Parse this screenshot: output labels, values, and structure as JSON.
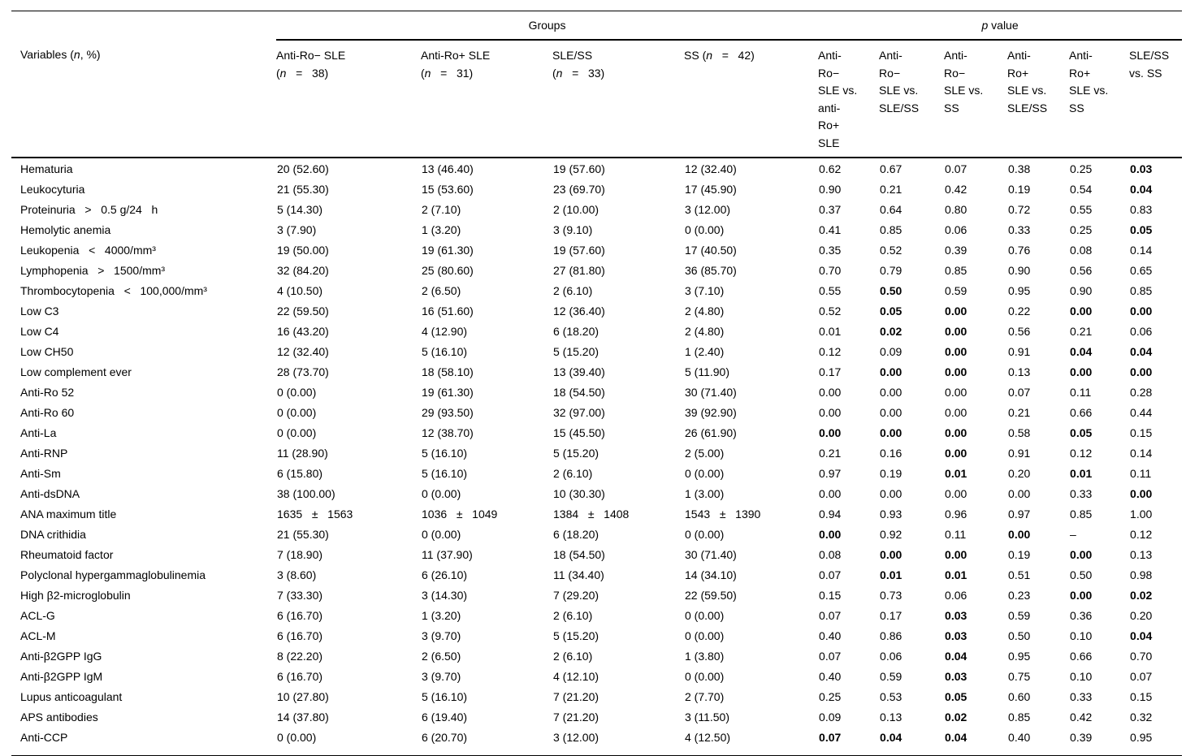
{
  "table": {
    "header": {
      "variables_label_parts": [
        {
          "t": "Variables (",
          "i": 0
        },
        {
          "t": "n",
          "i": 1
        },
        {
          "t": ", %)",
          "i": 0
        }
      ],
      "groups_label": "Groups",
      "pvalue_label_parts": [
        {
          "t": "p",
          "i": 1
        },
        {
          "t": " value",
          "i": 0
        }
      ],
      "group_columns": [
        {
          "l1": [
            {
              "t": "Anti-Ro− SLE",
              "i": 0
            }
          ],
          "l2": [
            {
              "t": "(",
              "i": 0
            },
            {
              "t": "n",
              "i": 1
            },
            {
              "t": "   =   38)",
              "i": 0
            }
          ]
        },
        {
          "l1": [
            {
              "t": "Anti-Ro+ SLE",
              "i": 0
            }
          ],
          "l2": [
            {
              "t": "(",
              "i": 0
            },
            {
              "t": "n",
              "i": 1
            },
            {
              "t": "   =   31)",
              "i": 0
            }
          ]
        },
        {
          "l1": [
            {
              "t": "SLE/SS",
              "i": 0
            }
          ],
          "l2": [
            {
              "t": "(",
              "i": 0
            },
            {
              "t": "n",
              "i": 1
            },
            {
              "t": "   =   33)",
              "i": 0
            }
          ]
        },
        {
          "l1": [
            {
              "t": "SS (",
              "i": 0
            },
            {
              "t": "n",
              "i": 1
            },
            {
              "t": "   =   42)",
              "i": 0
            }
          ],
          "l2": null
        }
      ],
      "pvalue_columns": [
        "Anti-\nRo−\nSLE vs.\nanti-\nRo+\nSLE",
        "Anti-\nRo−\nSLE vs.\nSLE/SS",
        "Anti-\nRo−\nSLE vs.\nSS",
        "Anti-\nRo+\nSLE vs.\nSLE/SS",
        "Anti-\nRo+\nSLE vs.\nSS",
        "SLE/SS\nvs. SS"
      ]
    },
    "rows": [
      {
        "variable": "Hematuria",
        "groups": [
          "20 (52.60)",
          "13 (46.40)",
          "19 (57.60)",
          "12 (32.40)"
        ],
        "p": [
          "0.62",
          "0.67",
          "0.07",
          "0.38",
          "0.25",
          "0.03"
        ],
        "bold": [
          0,
          0,
          0,
          0,
          0,
          1
        ]
      },
      {
        "variable": "Leukocyturia",
        "groups": [
          "21 (55.30)",
          "15 (53.60)",
          "23 (69.70)",
          "17 (45.90)"
        ],
        "p": [
          "0.90",
          "0.21",
          "0.42",
          "0.19",
          "0.54",
          "0.04"
        ],
        "bold": [
          0,
          0,
          0,
          0,
          0,
          1
        ]
      },
      {
        "variable": "Proteinuria   >   0.5 g/24   h",
        "groups": [
          "5 (14.30)",
          "2 (7.10)",
          "2 (10.00)",
          "3 (12.00)"
        ],
        "p": [
          "0.37",
          "0.64",
          "0.80",
          "0.72",
          "0.55",
          "0.83"
        ],
        "bold": [
          0,
          0,
          0,
          0,
          0,
          0
        ]
      },
      {
        "variable": "Hemolytic anemia",
        "groups": [
          "3 (7.90)",
          "1 (3.20)",
          "3 (9.10)",
          "0 (0.00)"
        ],
        "p": [
          "0.41",
          "0.85",
          "0.06",
          "0.33",
          "0.25",
          "0.05"
        ],
        "bold": [
          0,
          0,
          0,
          0,
          0,
          1
        ]
      },
      {
        "variable": "Leukopenia   <   4000/mm³",
        "groups": [
          "19 (50.00)",
          "19 (61.30)",
          "19 (57.60)",
          "17 (40.50)"
        ],
        "p": [
          "0.35",
          "0.52",
          "0.39",
          "0.76",
          "0.08",
          "0.14"
        ],
        "bold": [
          0,
          0,
          0,
          0,
          0,
          0
        ]
      },
      {
        "variable": "Lymphopenia   >   1500/mm³",
        "groups": [
          "32 (84.20)",
          "25 (80.60)",
          "27 (81.80)",
          "36 (85.70)"
        ],
        "p": [
          "0.70",
          "0.79",
          "0.85",
          "0.90",
          "0.56",
          "0.65"
        ],
        "bold": [
          0,
          0,
          0,
          0,
          0,
          0
        ]
      },
      {
        "variable": "Thrombocytopenia   <   100,000/mm³",
        "groups": [
          "4 (10.50)",
          "2 (6.50)",
          "2 (6.10)",
          "3 (7.10)"
        ],
        "p": [
          "0.55",
          "0.50",
          "0.59",
          "0.95",
          "0.90",
          "0.85"
        ],
        "bold": [
          0,
          1,
          0,
          0,
          0,
          0
        ]
      },
      {
        "variable": "Low C3",
        "groups": [
          "22 (59.50)",
          "16 (51.60)",
          "12 (36.40)",
          "2 (4.80)"
        ],
        "p": [
          "0.52",
          "0.05",
          "0.00",
          "0.22",
          "0.00",
          "0.00"
        ],
        "bold": [
          0,
          1,
          1,
          0,
          1,
          1
        ]
      },
      {
        "variable": "Low C4",
        "groups": [
          "16 (43.20)",
          "4 (12.90)",
          "6 (18.20)",
          "2 (4.80)"
        ],
        "p": [
          "0.01",
          "0.02",
          "0.00",
          "0.56",
          "0.21",
          "0.06"
        ],
        "bold": [
          0,
          1,
          1,
          0,
          0,
          0
        ]
      },
      {
        "variable": "Low CH50",
        "groups": [
          "12 (32.40)",
          "5 (16.10)",
          "5 (15.20)",
          "1 (2.40)"
        ],
        "p": [
          "0.12",
          "0.09",
          "0.00",
          "0.91",
          "0.04",
          "0.04"
        ],
        "bold": [
          0,
          0,
          1,
          0,
          1,
          1
        ]
      },
      {
        "variable": "Low complement ever",
        "groups": [
          "28 (73.70)",
          "18 (58.10)",
          "13 (39.40)",
          "5 (11.90)"
        ],
        "p": [
          "0.17",
          "0.00",
          "0.00",
          "0.13",
          "0.00",
          "0.00"
        ],
        "bold": [
          0,
          1,
          1,
          0,
          1,
          1
        ]
      },
      {
        "variable": "Anti-Ro 52",
        "groups": [
          "0 (0.00)",
          "19 (61.30)",
          "18 (54.50)",
          "30 (71.40)"
        ],
        "p": [
          "0.00",
          "0.00",
          "0.00",
          "0.07",
          "0.11",
          "0.28"
        ],
        "bold": [
          0,
          0,
          0,
          0,
          0,
          0
        ]
      },
      {
        "variable": "Anti-Ro 60",
        "groups": [
          "0 (0.00)",
          "29 (93.50)",
          "32 (97.00)",
          "39 (92.90)"
        ],
        "p": [
          "0.00",
          "0.00",
          "0.00",
          "0.21",
          "0.66",
          "0.44"
        ],
        "bold": [
          0,
          0,
          0,
          0,
          0,
          0
        ]
      },
      {
        "variable": "Anti-La",
        "groups": [
          "0 (0.00)",
          "12 (38.70)",
          "15 (45.50)",
          "26 (61.90)"
        ],
        "p": [
          "0.00",
          "0.00",
          "0.00",
          "0.58",
          "0.05",
          "0.15"
        ],
        "bold": [
          1,
          1,
          1,
          0,
          1,
          0
        ]
      },
      {
        "variable": "Anti-RNP",
        "groups": [
          "11 (28.90)",
          "5 (16.10)",
          "5 (15.20)",
          "2 (5.00)"
        ],
        "p": [
          "0.21",
          "0.16",
          "0.00",
          "0.91",
          "0.12",
          "0.14"
        ],
        "bold": [
          0,
          0,
          1,
          0,
          0,
          0
        ]
      },
      {
        "variable": "Anti-Sm",
        "groups": [
          "6 (15.80)",
          "5 (16.10)",
          "2 (6.10)",
          "0 (0.00)"
        ],
        "p": [
          "0.97",
          "0.19",
          "0.01",
          "0.20",
          "0.01",
          "0.11"
        ],
        "bold": [
          0,
          0,
          1,
          0,
          1,
          0
        ]
      },
      {
        "variable": "Anti-dsDNA",
        "groups": [
          "38 (100.00)",
          "0 (0.00)",
          "10 (30.30)",
          "1 (3.00)"
        ],
        "p": [
          "0.00",
          "0.00",
          "0.00",
          "0.00",
          "0.33",
          "0.00"
        ],
        "bold": [
          0,
          0,
          0,
          0,
          0,
          1
        ]
      },
      {
        "variable": "ANA maximum title",
        "groups": [
          "1635   ±   1563",
          "1036   ±   1049",
          "1384   ±   1408",
          "1543   ±   1390"
        ],
        "p": [
          "0.94",
          "0.93",
          "0.96",
          "0.97",
          "0.85",
          "1.00"
        ],
        "bold": [
          0,
          0,
          0,
          0,
          0,
          0
        ]
      },
      {
        "variable": "DNA crithidia",
        "groups": [
          "21 (55.30)",
          "0 (0.00)",
          "6 (18.20)",
          "0 (0.00)"
        ],
        "p": [
          "0.00",
          "0.92",
          "0.11",
          "0.00",
          "–",
          "0.12"
        ],
        "bold": [
          1,
          0,
          0,
          1,
          0,
          0
        ]
      },
      {
        "variable": "Rheumatoid factor",
        "groups": [
          "7 (18.90)",
          "11 (37.90)",
          "18 (54.50)",
          "30 (71.40)"
        ],
        "p": [
          "0.08",
          "0.00",
          "0.00",
          "0.19",
          "0.00",
          "0.13"
        ],
        "bold": [
          0,
          1,
          1,
          0,
          1,
          0
        ]
      },
      {
        "variable": "Polyclonal hypergammaglobulinemia",
        "groups": [
          "3 (8.60)",
          "6 (26.10)",
          "11 (34.40)",
          "14 (34.10)"
        ],
        "p": [
          "0.07",
          "0.01",
          "0.01",
          "0.51",
          "0.50",
          "0.98"
        ],
        "bold": [
          0,
          1,
          1,
          0,
          0,
          0
        ]
      },
      {
        "variable": "High β2-microglobulin",
        "groups": [
          "7 (33.30)",
          "3 (14.30)",
          "7 (29.20)",
          "22 (59.50)"
        ],
        "p": [
          "0.15",
          "0.73",
          "0.06",
          "0.23",
          "0.00",
          "0.02"
        ],
        "bold": [
          0,
          0,
          0,
          0,
          1,
          1
        ]
      },
      {
        "variable": "ACL-G",
        "groups": [
          "6 (16.70)",
          "1 (3.20)",
          "2 (6.10)",
          "0 (0.00)"
        ],
        "p": [
          "0.07",
          "0.17",
          "0.03",
          "0.59",
          "0.36",
          "0.20"
        ],
        "bold": [
          0,
          0,
          1,
          0,
          0,
          0
        ]
      },
      {
        "variable": "ACL-M",
        "groups": [
          "6 (16.70)",
          "3 (9.70)",
          "5 (15.20)",
          "0 (0.00)"
        ],
        "p": [
          "0.40",
          "0.86",
          "0.03",
          "0.50",
          "0.10",
          "0.04"
        ],
        "bold": [
          0,
          0,
          1,
          0,
          0,
          1
        ]
      },
      {
        "variable": "Anti-β2GPP IgG",
        "groups": [
          "8 (22.20)",
          "2 (6.50)",
          "2 (6.10)",
          "1 (3.80)"
        ],
        "p": [
          "0.07",
          "0.06",
          "0.04",
          "0.95",
          "0.66",
          "0.70"
        ],
        "bold": [
          0,
          0,
          1,
          0,
          0,
          0
        ]
      },
      {
        "variable": "Anti-β2GPP IgM",
        "groups": [
          "6 (16.70)",
          "3 (9.70)",
          "4 (12.10)",
          "0 (0.00)"
        ],
        "p": [
          "0.40",
          "0.59",
          "0.03",
          "0.75",
          "0.10",
          "0.07"
        ],
        "bold": [
          0,
          0,
          1,
          0,
          0,
          0
        ]
      },
      {
        "variable": "Lupus anticoagulant",
        "groups": [
          "10 (27.80)",
          "5 (16.10)",
          "7 (21.20)",
          "2 (7.70)"
        ],
        "p": [
          "0.25",
          "0.53",
          "0.05",
          "0.60",
          "0.33",
          "0.15"
        ],
        "bold": [
          0,
          0,
          1,
          0,
          0,
          0
        ]
      },
      {
        "variable": "APS antibodies",
        "groups": [
          "14 (37.80)",
          "6 (19.40)",
          "7 (21.20)",
          "3 (11.50)"
        ],
        "p": [
          "0.09",
          "0.13",
          "0.02",
          "0.85",
          "0.42",
          "0.32"
        ],
        "bold": [
          0,
          0,
          1,
          0,
          0,
          0
        ]
      },
      {
        "variable": "Anti-CCP",
        "groups": [
          "0 (0.00)",
          "6 (20.70)",
          "3 (12.00)",
          "4 (12.50)"
        ],
        "p": [
          "0.07",
          "0.04",
          "0.04",
          "0.40",
          "0.39",
          "0.95"
        ],
        "bold": [
          1,
          1,
          1,
          0,
          0,
          0
        ]
      }
    ]
  }
}
